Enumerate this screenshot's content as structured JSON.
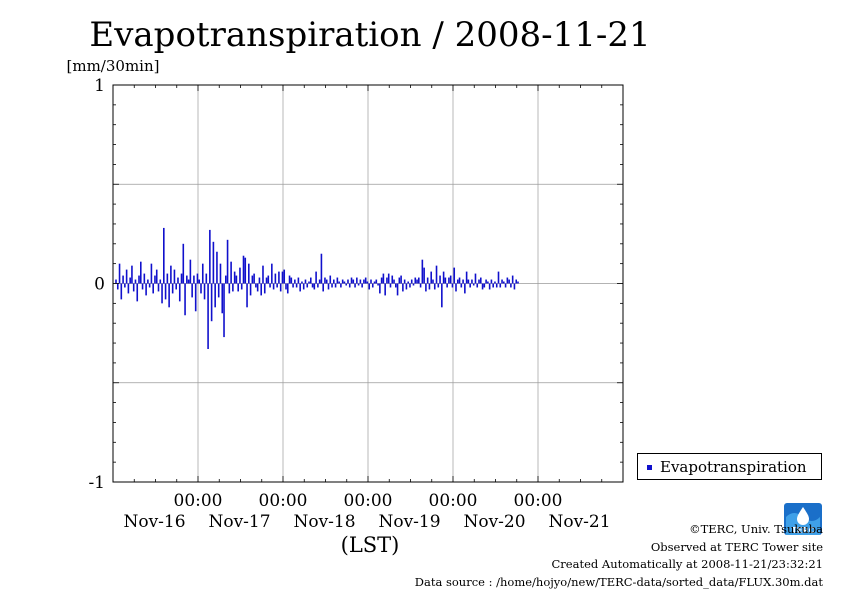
{
  "chart_data": {
    "type": "bar",
    "title": "Evapotranspiration / 2008-11-21",
    "ylabel": "[mm/30min]",
    "xlabel": "(LST)",
    "ylim": [
      -1,
      1
    ],
    "y_ticks": [
      "1",
      "0",
      "-1"
    ],
    "x_tick_time_label": "00:00",
    "x_day_labels": [
      "Nov-16",
      "Nov-17",
      "Nov-18",
      "Nov-19",
      "Nov-20",
      "Nov-21"
    ],
    "x_range_days": [
      -1,
      5
    ],
    "grid": true,
    "legend_position": "right",
    "series": [
      {
        "name": "Evapotranspiration",
        "color": "#1010cc",
        "interval_days": 0.0208333,
        "start_day": -1.0,
        "values": [
          0.02,
          -0.03,
          0.1,
          -0.08,
          0.04,
          -0.02,
          0.07,
          -0.05,
          0.03,
          0.09,
          -0.04,
          0.02,
          -0.09,
          0.04,
          0.11,
          -0.03,
          0.05,
          -0.06,
          0.02,
          -0.02,
          0.1,
          -0.05,
          0.04,
          0.07,
          -0.04,
          0.02,
          -0.1,
          0.28,
          -0.08,
          0.05,
          -0.12,
          0.09,
          -0.05,
          0.07,
          -0.03,
          0.03,
          -0.09,
          0.05,
          0.2,
          -0.16,
          0.04,
          0.02,
          0.12,
          -0.07,
          0.04,
          -0.14,
          0.05,
          0.02,
          -0.05,
          0.1,
          -0.08,
          0.05,
          -0.33,
          0.27,
          -0.19,
          0.21,
          -0.12,
          0.16,
          -0.07,
          0.1,
          -0.15,
          -0.27,
          0.04,
          0.22,
          -0.05,
          0.11,
          -0.04,
          0.06,
          0.04,
          -0.04,
          0.08,
          -0.03,
          0.14,
          0.13,
          -0.12,
          0.1,
          -0.06,
          0.04,
          0.05,
          -0.02,
          -0.04,
          0.03,
          -0.06,
          0.09,
          -0.05,
          0.03,
          0.04,
          -0.02,
          0.1,
          -0.03,
          0.05,
          -0.02,
          0.06,
          -0.04,
          0.06,
          0.07,
          -0.03,
          -0.05,
          0.04,
          0.03,
          -0.02,
          0.02,
          -0.02,
          0.03,
          -0.04,
          0.01,
          -0.03,
          0.02,
          -0.02,
          0.01,
          0.03,
          -0.02,
          -0.03,
          0.06,
          -0.02,
          0.02,
          0.15,
          -0.04,
          0.03,
          0.02,
          -0.03,
          0.04,
          -0.02,
          0.02,
          -0.02,
          0.03,
          0.01,
          -0.02,
          0.02,
          0.01,
          -0.01,
          0.02,
          -0.02,
          0.03,
          0.02,
          -0.02,
          0.03,
          -0.01,
          0.02,
          -0.02,
          0.02,
          0.03,
          0.01,
          -0.03,
          0.02,
          -0.02,
          0.01,
          0.02,
          -0.01,
          -0.05,
          0.03,
          0.05,
          -0.06,
          0.03,
          0.05,
          -0.02,
          0.04,
          0.02,
          -0.02,
          -0.06,
          0.03,
          0.04,
          -0.04,
          0.02,
          -0.03,
          0.01,
          -0.02,
          0.02,
          -0.01,
          0.03,
          0.02,
          0.03,
          -0.02,
          0.12,
          0.08,
          -0.04,
          0.03,
          -0.03,
          0.06,
          0.02,
          -0.03,
          0.09,
          -0.02,
          0.04,
          -0.12,
          0.06,
          0.03,
          -0.02,
          0.03,
          0.04,
          -0.02,
          0.08,
          -0.04,
          0.02,
          0.03,
          -0.02,
          0.02,
          -0.05,
          0.06,
          0.02,
          -0.02,
          0.02,
          -0.01,
          0.05,
          -0.02,
          0.02,
          0.03,
          -0.03,
          -0.02,
          0.02,
          0.01,
          -0.03,
          0.02,
          -0.02,
          0.01,
          -0.02,
          0.06,
          -0.02,
          0.02,
          0.01,
          -0.02,
          0.03,
          0.02,
          -0.02,
          0.04,
          -0.03,
          0.02,
          0.01
        ]
      }
    ]
  },
  "credits": {
    "copyright": "©TERC, Univ. Tsukuba",
    "site": "Observed at TERC Tower site",
    "created": "Created Automatically at 2008-11-21/23:32:21",
    "source": "Data source : /home/hojyo/new/TERC-data/sorted_data/FLUX.30m.dat"
  },
  "logo": {
    "text": "TERC"
  }
}
